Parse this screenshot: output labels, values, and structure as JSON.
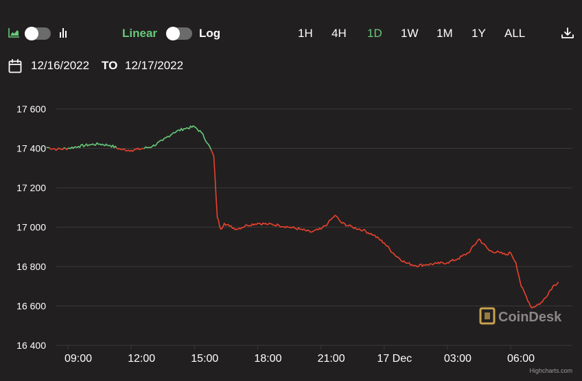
{
  "toolbar": {
    "chart_type_toggle": {
      "left_icon": "area-chart-icon",
      "right_icon": "bar-chart-icon"
    },
    "scale": {
      "linear_label": "Linear",
      "log_label": "Log",
      "selected": "Linear"
    },
    "ranges": [
      "1H",
      "4H",
      "1D",
      "1W",
      "1M",
      "1Y",
      "ALL"
    ],
    "active_range": "1D",
    "download_icon": "download-icon"
  },
  "date_range": {
    "icon": "calendar-icon",
    "from": "12/16/2022",
    "to_label": "TO",
    "to": "12/17/2022"
  },
  "watermark": "CoinDesk",
  "credit": "Highcharts.com",
  "colors": {
    "background": "#221f20",
    "up": "#66c97a",
    "down": "#e8432d",
    "grid": "#3c3a3b",
    "active": "#66c97a",
    "watermark": "#c8a24e"
  },
  "chart_data": {
    "type": "line",
    "title": "",
    "xlabel": "",
    "ylabel": "",
    "ylim": [
      16400,
      17600
    ],
    "yticks": [
      17600,
      17400,
      17200,
      17000,
      16800,
      16600,
      16400
    ],
    "ytick_labels": [
      "17 600",
      "17 400",
      "17 200",
      "17 000",
      "16 800",
      "16 600",
      "16 400"
    ],
    "xlim": [
      "2022-12-16 08:00",
      "2022-12-17 08:30"
    ],
    "xticks": [
      "2022-12-16 09:00",
      "2022-12-16 12:00",
      "2022-12-16 15:00",
      "2022-12-16 18:00",
      "2022-12-16 21:00",
      "2022-12-17 00:00",
      "2022-12-17 03:00",
      "2022-12-17 06:00"
    ],
    "xtick_labels": [
      "09:00",
      "12:00",
      "15:00",
      "18:00",
      "21:00",
      "17 Dec",
      "03:00",
      "06:00"
    ],
    "grid": true,
    "reference_price": 17400,
    "series": [
      {
        "x": [
          "2022-12-16 08:00",
          "2022-12-16 08:30",
          "2022-12-16 09:00",
          "2022-12-16 09:30",
          "2022-12-16 10:00",
          "2022-12-16 10:30",
          "2022-12-16 11:00",
          "2022-12-16 11:30",
          "2022-12-16 12:00",
          "2022-12-16 12:30",
          "2022-12-16 13:00",
          "2022-12-16 13:30",
          "2022-12-16 14:00",
          "2022-12-16 14:30",
          "2022-12-16 15:00",
          "2022-12-16 15:20",
          "2022-12-16 15:40",
          "2022-12-16 15:55",
          "2022-12-16 16:05",
          "2022-12-16 16:15",
          "2022-12-16 16:25",
          "2022-12-16 16:40",
          "2022-12-16 17:00",
          "2022-12-16 17:30",
          "2022-12-16 18:00",
          "2022-12-16 18:30",
          "2022-12-16 19:00",
          "2022-12-16 19:30",
          "2022-12-16 20:00",
          "2022-12-16 20:30",
          "2022-12-16 21:00",
          "2022-12-16 21:20",
          "2022-12-16 21:40",
          "2022-12-16 22:00",
          "2022-12-16 22:30",
          "2022-12-16 23:00",
          "2022-12-16 23:30",
          "2022-12-17 00:00",
          "2022-12-17 00:30",
          "2022-12-17 01:00",
          "2022-12-17 01:30",
          "2022-12-17 02:00",
          "2022-12-17 02:30",
          "2022-12-17 03:00",
          "2022-12-17 03:30",
          "2022-12-17 04:00",
          "2022-12-17 04:30",
          "2022-12-17 05:00",
          "2022-12-17 05:30",
          "2022-12-17 05:45",
          "2022-12-17 06:00",
          "2022-12-17 06:15",
          "2022-12-17 06:30",
          "2022-12-17 07:00",
          "2022-12-17 07:30",
          "2022-12-17 08:00",
          "2022-12-17 08:15"
        ],
        "values": [
          17405,
          17395,
          17400,
          17410,
          17418,
          17422,
          17415,
          17395,
          17390,
          17398,
          17410,
          17440,
          17480,
          17500,
          17510,
          17480,
          17420,
          17360,
          17050,
          16990,
          17020,
          17005,
          16990,
          17010,
          17020,
          17015,
          17010,
          17000,
          16990,
          16975,
          16990,
          17020,
          17060,
          17020,
          17000,
          16985,
          16960,
          16920,
          16860,
          16820,
          16805,
          16810,
          16815,
          16820,
          16840,
          16870,
          16940,
          16880,
          16870,
          16860,
          16870,
          16820,
          16700,
          16590,
          16620,
          16700,
          16720
        ]
      }
    ]
  }
}
